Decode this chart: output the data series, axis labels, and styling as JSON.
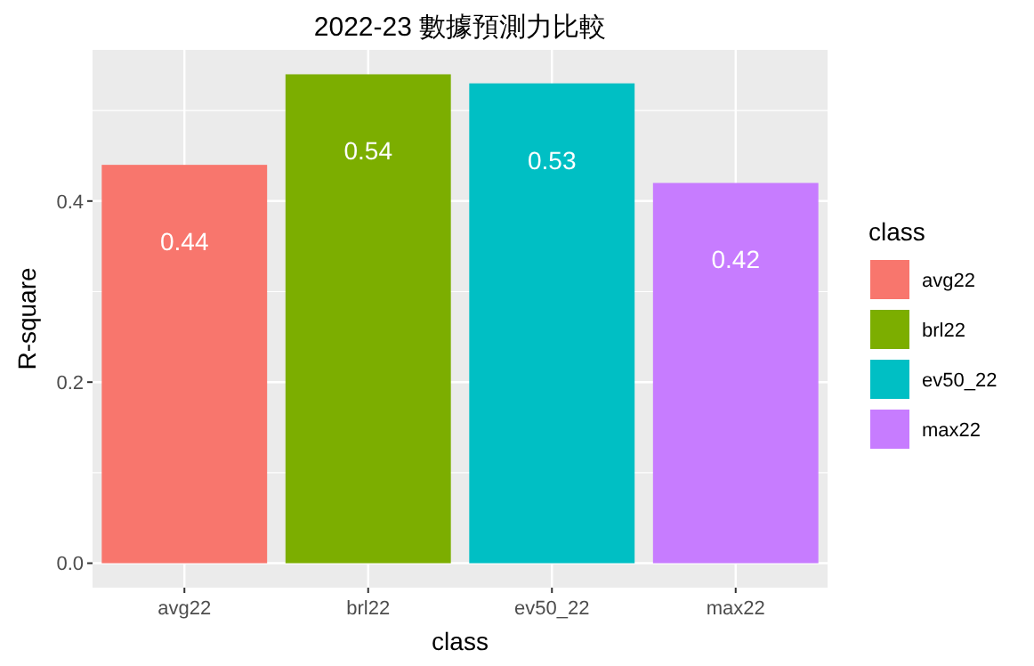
{
  "chart_data": {
    "type": "bar",
    "title": "2022-23 數據預測力比較",
    "xlabel": "class",
    "ylabel": "R-square",
    "legend_title": "class",
    "categories": [
      "avg22",
      "brl22",
      "ev50_22",
      "max22"
    ],
    "stacked": true,
    "series": [
      {
        "name": "avg22",
        "color": "#f8766d",
        "values": [
          0.44,
          null,
          null,
          null
        ]
      },
      {
        "name": "brl22",
        "color": "#7cae00",
        "values": [
          null,
          0.54,
          null,
          null
        ]
      },
      {
        "name": "ev50_22",
        "color": "#00bfc4",
        "values": [
          null,
          null,
          0.53,
          null
        ]
      },
      {
        "name": "max22",
        "color": "#c77cff",
        "values": [
          null,
          null,
          null,
          0.42
        ]
      }
    ],
    "data_labels": true,
    "ylim": [
      -0.027,
      0.567
    ],
    "yticks": [
      {
        "value": 0,
        "label": "0.0"
      },
      {
        "value": 0.2,
        "label": "0.2"
      },
      {
        "value": 0.4,
        "label": "0.4"
      }
    ],
    "grid": true,
    "legend": "right"
  }
}
